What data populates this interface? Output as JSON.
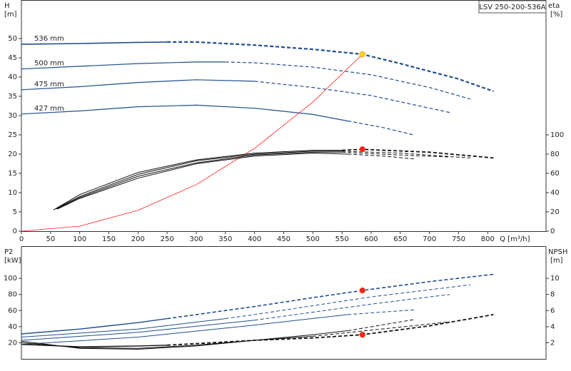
{
  "chart_data": [
    {
      "type": "line",
      "title": "LSV 250-200-536A",
      "y_label": "H",
      "y_unit": "[m]",
      "y2_label": "eta",
      "y2_unit": "[%]",
      "x_label": "Q [m³/h]",
      "xlim": [
        0,
        900
      ],
      "xticks": [
        0,
        50,
        100,
        150,
        200,
        250,
        300,
        350,
        400,
        450,
        500,
        550,
        600,
        650,
        700,
        750,
        800
      ],
      "ylim": [
        0,
        60
      ],
      "yticks": [
        0,
        5,
        10,
        15,
        20,
        25,
        30,
        35,
        40,
        45,
        50
      ],
      "y2lim": [
        0,
        240
      ],
      "y2ticks": [
        0,
        20,
        40,
        60,
        80,
        100
      ],
      "series": [
        {
          "name": "536 mm",
          "color": "#1f4e8c",
          "width": 1.6,
          "x": [
            0,
            100,
            200,
            250
          ],
          "values": [
            48.5,
            48.7,
            49,
            49.1
          ]
        },
        {
          "color": "#1f4e8c",
          "dash": true,
          "width": 2.2,
          "x": [
            250,
            300,
            400,
            500,
            585,
            650,
            750,
            810
          ],
          "values": [
            49.1,
            49.1,
            48.3,
            47.2,
            45.9,
            43.5,
            39.5,
            36.3
          ]
        },
        {
          "name": "500 mm",
          "color": "#1f4e8c",
          "width": 1.2,
          "x": [
            0,
            100,
            200,
            300,
            350
          ],
          "values": [
            42.1,
            42.8,
            43.5,
            43.9,
            43.9
          ]
        },
        {
          "color": "#1f4e8c",
          "dash": true,
          "width": 1.2,
          "x": [
            350,
            400,
            500,
            600,
            700,
            770
          ],
          "values": [
            43.9,
            43.7,
            42.6,
            40.6,
            37.3,
            34.3
          ]
        },
        {
          "name": "475 mm",
          "color": "#1f4e8c",
          "width": 1.2,
          "x": [
            0,
            100,
            200,
            300,
            400
          ],
          "values": [
            36.7,
            37.5,
            38.6,
            39.3,
            38.9
          ]
        },
        {
          "color": "#1f4e8c",
          "dash": true,
          "width": 1.2,
          "x": [
            400,
            500,
            600,
            735
          ],
          "values": [
            38.9,
            37.3,
            35.2,
            30.8
          ]
        },
        {
          "name": "427 mm",
          "color": "#1f4e8c",
          "width": 1.2,
          "x": [
            0,
            100,
            200,
            300,
            400,
            500,
            560
          ],
          "values": [
            30.4,
            31.2,
            32.3,
            32.7,
            31.9,
            30.3,
            28.6
          ]
        },
        {
          "color": "#1f4e8c",
          "dash": true,
          "width": 1.2,
          "x": [
            560,
            620,
            675
          ],
          "values": [
            28.6,
            26.9,
            24.9
          ]
        },
        {
          "color": "#ff2020",
          "width": 0.8,
          "x": [
            0,
            100,
            200,
            300,
            400,
            500,
            585
          ],
          "values": [
            0,
            1.3,
            5.4,
            12.1,
            21.5,
            33.5,
            45.9
          ]
        },
        {
          "color": "#111111",
          "width": 1,
          "axis": "y2",
          "x": [
            55,
            100,
            200,
            300,
            400,
            500,
            550
          ],
          "values": [
            22,
            38,
            61,
            74,
            81,
            84,
            84
          ]
        },
        {
          "color": "#111111",
          "dash": true,
          "width": 1.8,
          "axis": "y2",
          "x": [
            550,
            585,
            700,
            810
          ],
          "values": [
            84,
            85,
            82,
            76
          ]
        },
        {
          "color": "#111111",
          "width": 1,
          "axis": "y2",
          "x": [
            58,
            100,
            200,
            300,
            400,
            500,
            550
          ],
          "values": [
            23,
            36,
            59,
            73,
            80,
            83,
            83
          ]
        },
        {
          "color": "#111111",
          "dash": true,
          "width": 1,
          "axis": "y2",
          "x": [
            550,
            650,
            770
          ],
          "values": [
            83,
            81,
            76
          ]
        },
        {
          "color": "#111111",
          "width": 1,
          "axis": "y2",
          "x": [
            60,
            100,
            200,
            300,
            400,
            500,
            550
          ],
          "values": [
            23,
            35,
            57,
            71,
            79,
            82,
            82
          ]
        },
        {
          "color": "#111111",
          "dash": true,
          "width": 1,
          "axis": "y2",
          "x": [
            550,
            650,
            735
          ],
          "values": [
            82,
            79,
            77
          ]
        },
        {
          "color": "#111111",
          "width": 1,
          "axis": "y2",
          "x": [
            62,
            100,
            200,
            300,
            400,
            500,
            560
          ],
          "values": [
            23,
            34,
            55,
            70,
            78,
            81,
            80
          ]
        },
        {
          "color": "#111111",
          "dash": true,
          "width": 1,
          "axis": "y2",
          "x": [
            560,
            620,
            675
          ],
          "values": [
            80,
            78,
            75
          ]
        }
      ],
      "points": [
        {
          "x": 585,
          "y": 45.9,
          "color": "#ffd21e"
        },
        {
          "x": 585,
          "y": 85,
          "color": "#ff2020",
          "axis": "y2"
        }
      ]
    },
    {
      "type": "line",
      "y_label": "P2",
      "y_unit": "[kW]",
      "y2_label": "NPSH",
      "y2_unit": "[m]",
      "xlim": [
        0,
        900
      ],
      "ylim": [
        0,
        140
      ],
      "yticks": [
        20,
        40,
        60,
        80,
        100
      ],
      "y2lim": [
        0,
        14
      ],
      "y2ticks": [
        2,
        4,
        6,
        8,
        10
      ],
      "series": [
        {
          "color": "#1f4e8c",
          "width": 1.4,
          "x": [
            0,
            100,
            200,
            250
          ],
          "values": [
            31,
            37,
            45,
            50
          ]
        },
        {
          "color": "#1f4e8c",
          "dash": true,
          "width": 1.6,
          "x": [
            250,
            300,
            400,
            500,
            585,
            700,
            810
          ],
          "values": [
            50,
            55,
            65,
            76,
            85,
            96,
            105
          ]
        },
        {
          "color": "#1f4e8c",
          "width": 1,
          "x": [
            0,
            200,
            350
          ],
          "values": [
            27,
            37,
            50
          ]
        },
        {
          "color": "#1f4e8c",
          "dash": true,
          "width": 1,
          "x": [
            350,
            400,
            600,
            770
          ],
          "values": [
            50,
            55,
            77,
            92
          ]
        },
        {
          "color": "#1f4e8c",
          "width": 1,
          "x": [
            0,
            200,
            400
          ],
          "values": [
            23,
            33,
            48
          ]
        },
        {
          "color": "#1f4e8c",
          "dash": true,
          "width": 1,
          "x": [
            400,
            600,
            735
          ],
          "values": [
            48,
            68,
            80
          ]
        },
        {
          "color": "#1f4e8c",
          "width": 1,
          "x": [
            0,
            200,
            400,
            560
          ],
          "values": [
            18,
            27,
            42,
            55
          ]
        },
        {
          "color": "#1f4e8c",
          "dash": true,
          "width": 1,
          "x": [
            560,
            675
          ],
          "values": [
            55,
            61
          ]
        },
        {
          "color": "#111111",
          "width": 1.4,
          "axis": "y2",
          "x": [
            0,
            100,
            200,
            250
          ],
          "values": [
            1.8,
            1.5,
            1.6,
            1.7
          ]
        },
        {
          "color": "#111111",
          "dash": true,
          "width": 1.8,
          "axis": "y2",
          "x": [
            250,
            300,
            400,
            500,
            585,
            700,
            810
          ],
          "values": [
            1.7,
            1.9,
            2.3,
            2.6,
            3,
            4.1,
            5.5
          ]
        },
        {
          "color": "#111111",
          "width": 1,
          "axis": "y2",
          "x": [
            0,
            100,
            200,
            300,
            400,
            500,
            560
          ],
          "values": [
            2.2,
            1.3,
            1.2,
            1.6,
            2.3,
            3,
            3.5
          ]
        },
        {
          "color": "#111111",
          "dash": true,
          "width": 1,
          "axis": "y2",
          "x": [
            560,
            675
          ],
          "values": [
            3.5,
            4.9
          ]
        },
        {
          "color": "#111111",
          "width": 1,
          "axis": "y2",
          "x": [
            0,
            100,
            200,
            300,
            400,
            500
          ],
          "values": [
            2,
            1.4,
            1.3,
            1.7,
            2.3,
            2.8
          ]
        },
        {
          "color": "#111111",
          "dash": true,
          "width": 1,
          "axis": "y2",
          "x": [
            500,
            735
          ],
          "values": [
            2.8,
            4.6
          ]
        }
      ],
      "points": [
        {
          "x": 585,
          "y": 85,
          "color": "#ff2020"
        },
        {
          "x": 585,
          "y": 3,
          "color": "#ff2020",
          "axis": "y2"
        }
      ]
    }
  ]
}
